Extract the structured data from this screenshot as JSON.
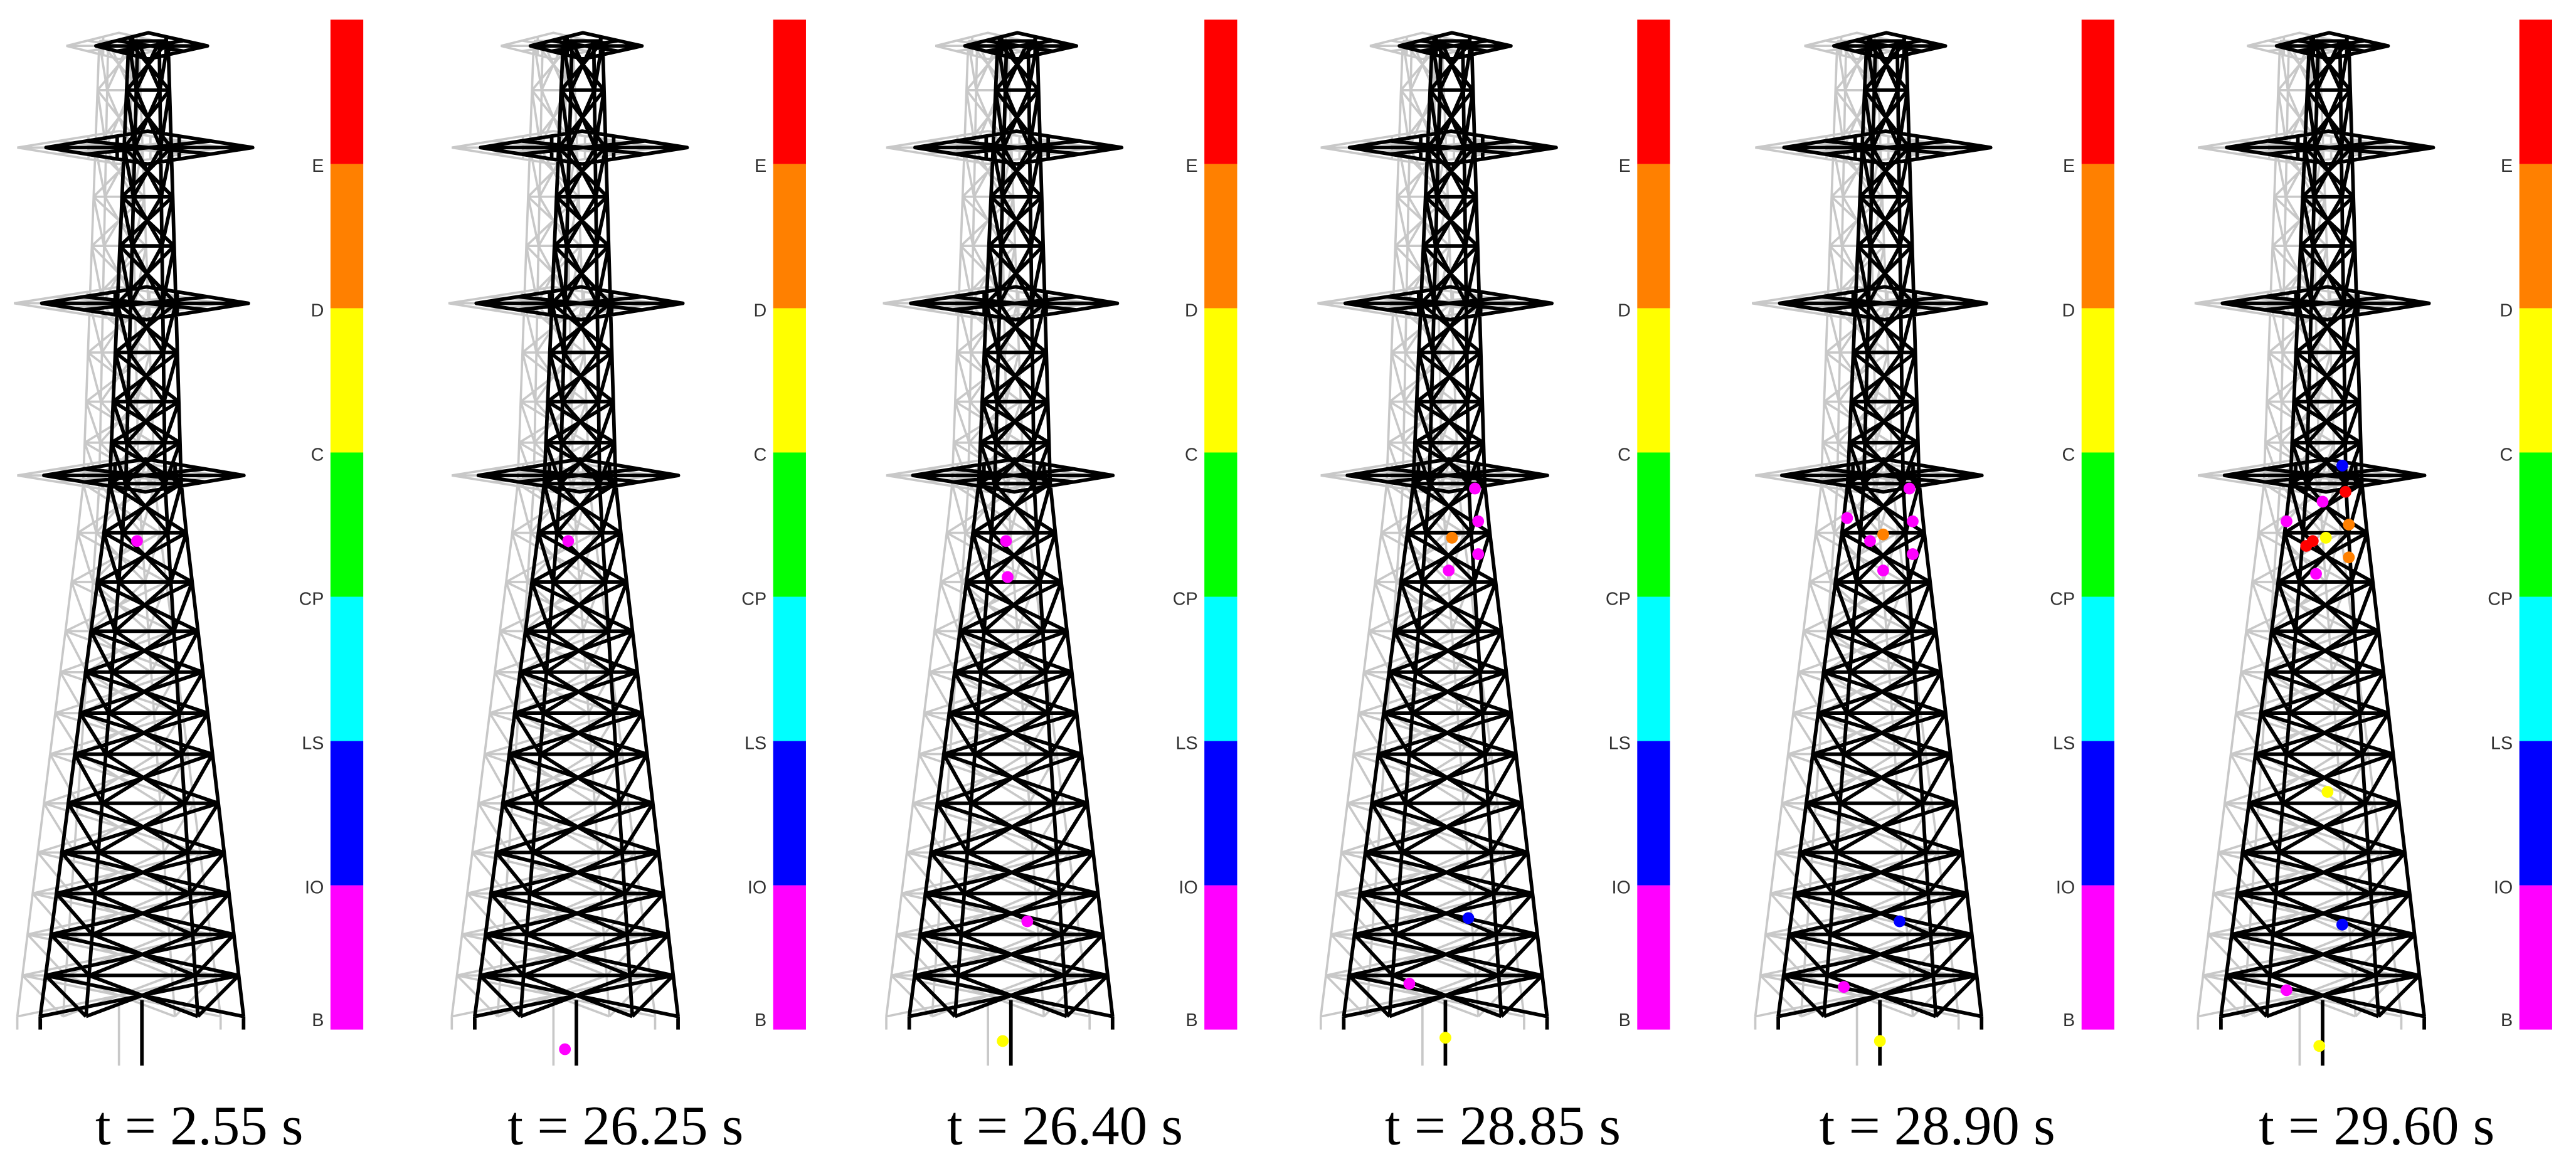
{
  "panels": [
    {
      "caption": "t = 2.55 s"
    },
    {
      "caption": "t = 26.25 s"
    },
    {
      "caption": "t = 26.40 s"
    },
    {
      "caption": "t = 28.85 s"
    },
    {
      "caption": "t = 28.90 s"
    },
    {
      "caption": "t = 29.60 s"
    }
  ],
  "legend": {
    "labels": [
      "B",
      "IO",
      "LS",
      "CP",
      "C",
      "D",
      "E"
    ]
  }
}
